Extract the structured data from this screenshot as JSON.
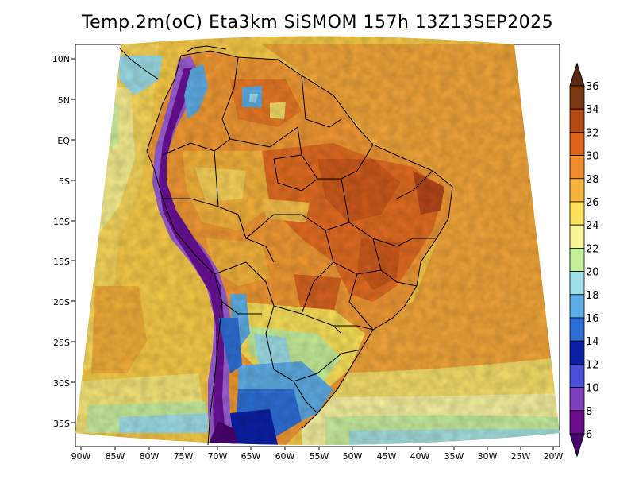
{
  "title": "Temp.2m(oC) Eta3km SiSMOM 157h 13Z13SEP2025",
  "map": {
    "variable": "Temp.2m",
    "unit": "oC",
    "model": "Eta3km",
    "run_label": "SiSMOM",
    "forecast_hour": "157h",
    "valid_time": "13Z13SEP2025"
  },
  "axes": {
    "lat_labels": [
      "10N",
      "5N",
      "EQ",
      "5S",
      "10S",
      "15S",
      "20S",
      "25S",
      "30S",
      "35S"
    ],
    "lon_labels": [
      "90W",
      "85W",
      "80W",
      "75W",
      "70W",
      "65W",
      "60W",
      "55W",
      "50W",
      "45W",
      "40W",
      "35W",
      "30W",
      "25W",
      "20W"
    ]
  },
  "colorbar": {
    "ticks": [
      "36",
      "34",
      "32",
      "30",
      "28",
      "26",
      "24",
      "22",
      "20",
      "18",
      "16",
      "14",
      "12",
      "10",
      "8",
      "6"
    ],
    "colors": [
      "#5a2a10",
      "#7a3812",
      "#b24c17",
      "#e0661e",
      "#f08d2e",
      "#f6b43c",
      "#fbe25a",
      "#f7f69a",
      "#c6ef9a",
      "#9fdfe8",
      "#5eaee6",
      "#2d6fd6",
      "#0b1fa6",
      "#4a4fd8",
      "#7f3fbe",
      "#6a0c8c",
      "#4a0472"
    ]
  }
}
